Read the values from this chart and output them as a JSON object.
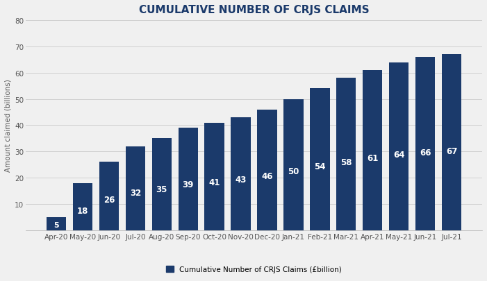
{
  "title": "CUMULATIVE NUMBER OF CRJS CLAIMS",
  "categories": [
    "Apr-20",
    "May-20",
    "Jun-20",
    "Jul-20",
    "Aug-20",
    "Sep-20",
    "Oct-20",
    "Nov-20",
    "Dec-20",
    "Jan-21",
    "Feb-21",
    "Mar-21",
    "Apr-21",
    "May-21",
    "Jun-21",
    "Jul-21"
  ],
  "values": [
    5,
    18,
    26,
    32,
    35,
    39,
    41,
    43,
    46,
    50,
    54,
    58,
    61,
    64,
    66,
    67
  ],
  "bar_color": "#1b3a6b",
  "label_color": "#ffffff",
  "ylabel": "Amount claimed (billions)",
  "ylim": [
    0,
    80
  ],
  "yticks": [
    0,
    10,
    20,
    30,
    40,
    50,
    60,
    70,
    80
  ],
  "legend_label": "Cumulative Number of CRJS Claims (£billion)",
  "background_color": "#f0f0f0",
  "plot_bg_color": "#f0f0f0",
  "title_fontsize": 11,
  "title_color": "#1b3a6b",
  "label_fontsize": 8.5,
  "ylabel_fontsize": 7.5,
  "tick_fontsize": 7.5,
  "tick_color": "#555555",
  "grid_color": "#d0d0d0",
  "spine_color": "#aaaaaa"
}
